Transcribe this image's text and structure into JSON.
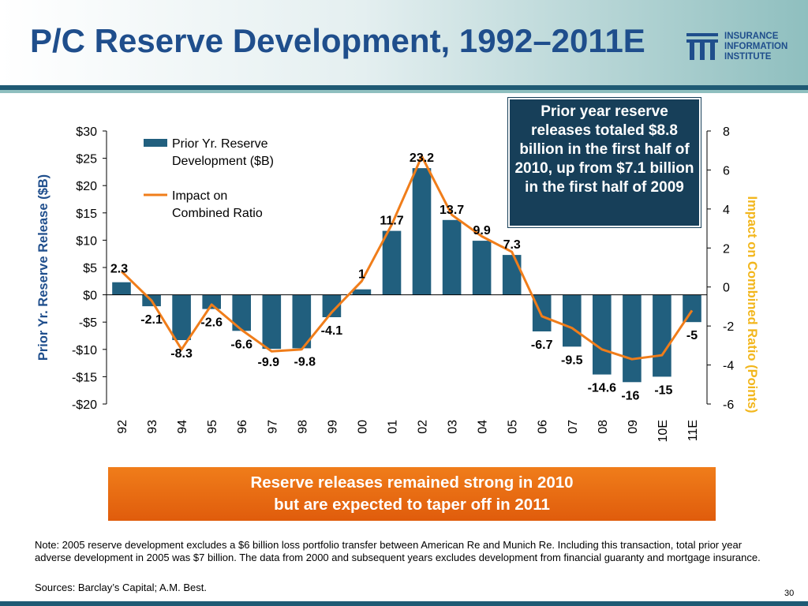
{
  "slide": {
    "title": "P/C Reserve Development, 1992–2011E",
    "page_number": "30"
  },
  "logo": {
    "line1": "INSURANCE",
    "line2": "INFORMATION",
    "line3": "INSTITUTE"
  },
  "callout": {
    "text": "Prior year reserve releases totaled $8.8 billion in the first half of 2010, up from $7.1 billion in the first half of 2009"
  },
  "banner": {
    "line1": "Reserve releases remained strong in 2010",
    "line2": "but are expected to taper off in 2011"
  },
  "footer": {
    "note": "Note: 2005 reserve development excludes a $6 billion loss portfolio transfer between American Re and Munich Re. Including this transaction, total prior year adverse development in 2005 was $7 billion. The data from 2000 and subsequent years excludes development from financial guaranty and mortgage insurance.",
    "sources": "Sources: Barclay’s Capital; A.M. Best."
  },
  "colors": {
    "title": "#1f4e8c",
    "bar": "#215f7e",
    "line": "#f07d1a",
    "right_axis_label": "#f2b61c",
    "callout_bg": "#173f59",
    "banner": "#e8690f"
  },
  "chart_data": {
    "type": "bar",
    "categories": [
      "92",
      "93",
      "94",
      "95",
      "96",
      "97",
      "98",
      "99",
      "00",
      "01",
      "02",
      "03",
      "04",
      "05",
      "06",
      "07",
      "08",
      "09",
      "10E",
      "11E"
    ],
    "series": [
      {
        "name": "Prior Yr. Reserve Development ($B)",
        "type": "bar",
        "axis": "left",
        "values": [
          2.3,
          -2.1,
          -8.3,
          -2.6,
          -6.6,
          -9.9,
          -9.8,
          -4.1,
          1,
          11.7,
          23.2,
          13.7,
          9.9,
          7.3,
          -6.7,
          -9.5,
          -14.6,
          -16,
          -15,
          -5
        ],
        "labels": [
          "2.3",
          "-2.1",
          "-8.3",
          "-2.6",
          "-6.6",
          "-9.9",
          "-9.8",
          "-4.1",
          "1",
          "11.7",
          "23.2",
          "13.7",
          "9.9",
          "7.3",
          "-6.7",
          "-9.5",
          "-14.6",
          "-16",
          "-15",
          "-5"
        ]
      },
      {
        "name": "Impact on Combined Ratio",
        "type": "line",
        "axis": "right",
        "values": [
          0.8,
          -0.7,
          -3.2,
          -0.9,
          -2.2,
          -3.3,
          -3.2,
          -1.3,
          0.3,
          3.2,
          6.7,
          3.7,
          2.6,
          1.8,
          -1.5,
          -2.1,
          -3.2,
          -3.7,
          -3.5,
          -1.2
        ]
      }
    ],
    "y_left": {
      "label": "Prior Yr. Reserve Release ($B)",
      "range": [
        -20,
        30
      ],
      "ticks": [
        30,
        25,
        20,
        15,
        10,
        5,
        0,
        -5,
        -10,
        -15,
        -20
      ],
      "tick_labels": [
        "$30",
        "$25",
        "$20",
        "$15",
        "$10",
        "$5",
        "$0",
        "-$5",
        "-$10",
        "-$15",
        "-$20"
      ]
    },
    "y_right": {
      "label": "Impact on Combined Ratio (Points)",
      "range": [
        -6,
        8
      ],
      "ticks": [
        8,
        6,
        4,
        2,
        0,
        -2,
        -4,
        -6
      ],
      "tick_labels": [
        "8",
        "6",
        "4",
        "2",
        "0",
        "-2",
        "-4",
        "-6"
      ]
    },
    "legend": [
      {
        "line1": "Prior Yr. Reserve",
        "line2": "Development ($B)"
      },
      {
        "line1": "Impact on",
        "line2": "Combined Ratio"
      }
    ],
    "legend_position": "top-left",
    "grid": false
  }
}
